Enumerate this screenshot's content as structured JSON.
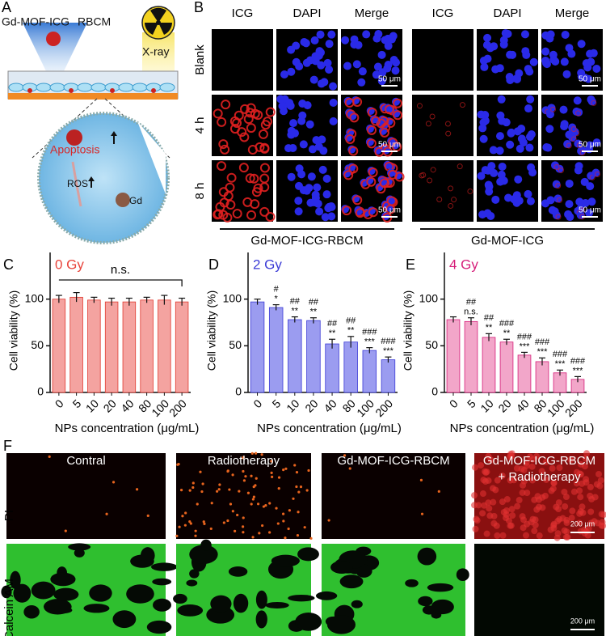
{
  "panel_labels": [
    "A",
    "B",
    "C",
    "D",
    "E",
    "F"
  ],
  "panel_a": {
    "labels": {
      "nanoparticle": "Gd-MOF-ICG",
      "membrane": "RBCM",
      "radiation": "X-ray",
      "apoptosis": "Apoptosis",
      "ros": "ROS",
      "gd": "Gd"
    }
  },
  "panel_b": {
    "columns": [
      "ICG",
      "DAPI",
      "Merge"
    ],
    "rows": [
      "Blank",
      "4 h",
      "8 h"
    ],
    "scale_bar": "50 μm",
    "groups": [
      "Gd-MOF-ICG-RBCM",
      "Gd-MOF-ICG"
    ]
  },
  "chart_data": [
    {
      "type": "bar",
      "title": "0 Gy",
      "title_color": "#e8433a",
      "x_label": "NPs concentration (μg/mL)",
      "y_label": "Cell viability (%)",
      "categories": [
        "0",
        "5",
        "10",
        "20",
        "40",
        "80",
        "100",
        "200"
      ],
      "values": [
        100,
        102,
        99,
        97,
        97,
        99,
        99,
        97
      ],
      "errors": [
        4,
        5,
        3,
        4,
        4,
        3,
        5,
        4
      ],
      "color": "#f4a3a0",
      "point_color": "#e03a30",
      "ylim": [
        0,
        150
      ],
      "yticks": [
        0,
        50,
        100
      ],
      "annotation": "n.s."
    },
    {
      "type": "bar",
      "title": "2 Gy",
      "title_color": "#3b3bd6",
      "x_label": "NPs concentration (μg/mL)",
      "y_label": "Cell viability (%)",
      "categories": [
        "0",
        "5",
        "10",
        "20",
        "40",
        "80",
        "100",
        "200"
      ],
      "values": [
        97,
        91,
        78,
        77,
        52,
        54,
        45,
        35
      ],
      "errors": [
        3,
        3,
        3,
        3,
        5,
        6,
        3,
        3
      ],
      "color": "#9b9cf0",
      "point_color": "#3b3bd6",
      "ylim": [
        0,
        150
      ],
      "yticks": [
        0,
        50,
        100
      ],
      "sig1": [
        null,
        "*",
        "**",
        "**",
        "**",
        "**",
        "***",
        "***"
      ],
      "sig2": [
        null,
        "#",
        "##",
        "##",
        "##",
        "##",
        "###",
        "###"
      ]
    },
    {
      "type": "bar",
      "title": "4 Gy",
      "title_color": "#d61f7a",
      "x_label": "NPs concentration (μg/mL)",
      "y_label": "Cell viability (%)",
      "categories": [
        "0",
        "5",
        "10",
        "20",
        "40",
        "80",
        "100",
        "200"
      ],
      "values": [
        78,
        76,
        59,
        54,
        40,
        33,
        21,
        14
      ],
      "errors": [
        3,
        4,
        4,
        3,
        3,
        4,
        3,
        3
      ],
      "color": "#f2a6c9",
      "point_color": "#d61f7a",
      "ylim": [
        0,
        150
      ],
      "yticks": [
        0,
        50,
        100
      ],
      "sig1": [
        null,
        "n.s.",
        "**",
        "**",
        "***",
        "***",
        "***",
        "***"
      ],
      "sig2": [
        null,
        "##",
        "##",
        "###",
        "###",
        "###",
        "###",
        "###"
      ]
    }
  ],
  "panel_f": {
    "columns": [
      [
        "Contral"
      ],
      [
        "Radiotherapy"
      ],
      [
        "Gd-MOF-ICG-RBCM"
      ],
      [
        "Gd-MOF-ICG-RBCM",
        "+ Radiotherapy"
      ]
    ],
    "rows": [
      "PI",
      "Calcein AM"
    ],
    "scale_bar": "200 μm"
  }
}
